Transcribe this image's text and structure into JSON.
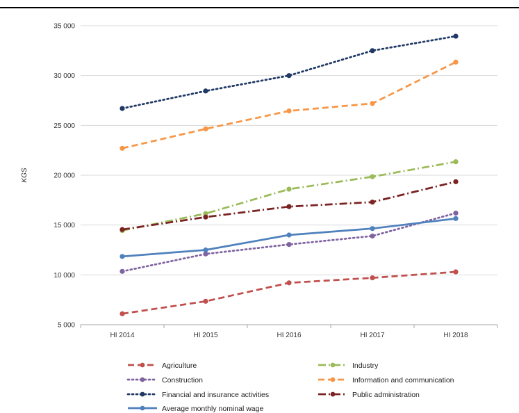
{
  "chart_data": {
    "type": "line",
    "title": "",
    "xlabel": "",
    "ylabel": "KGS",
    "categories": [
      "HI 2014",
      "HI 2015",
      "HI 2016",
      "HI 2017",
      "HI 2018"
    ],
    "ylim": [
      5000,
      35000
    ],
    "yticks": [
      5000,
      10000,
      15000,
      20000,
      25000,
      30000,
      35000
    ],
    "ytick_labels": [
      "5 000",
      "10 000",
      "15 000",
      "20 000",
      "25 000",
      "30 000",
      "35 000"
    ],
    "grid": true,
    "legend_position": "bottom",
    "series": [
      {
        "name": "Agriculture",
        "color": "#c0504d",
        "dash": "dash",
        "values": [
          6100,
          7350,
          9200,
          9700,
          10300
        ]
      },
      {
        "name": "Industry",
        "color": "#9bbb59",
        "dash": "dashdot",
        "values": [
          14450,
          16150,
          18600,
          19850,
          21350
        ]
      },
      {
        "name": "Construction",
        "color": "#8064a2",
        "dash": "dot",
        "values": [
          10350,
          12100,
          13050,
          13900,
          16200
        ]
      },
      {
        "name": "Information and communication",
        "color": "#f79646",
        "dash": "dash",
        "values": [
          22700,
          24650,
          26450,
          27200,
          31350
        ]
      },
      {
        "name": "Financial and insurance activities",
        "color": "#1f3864",
        "dash": "dot",
        "values": [
          26700,
          28450,
          30000,
          32500,
          33950
        ]
      },
      {
        "name": "Public administration",
        "color": "#7b2323",
        "dash": "dashdot",
        "values": [
          14550,
          15800,
          16850,
          17300,
          19350
        ]
      },
      {
        "name": "Average monthly nominal wage",
        "color": "#4f81bd",
        "dash": "solid",
        "values": [
          11850,
          12500,
          14000,
          14650,
          15650
        ]
      }
    ]
  }
}
